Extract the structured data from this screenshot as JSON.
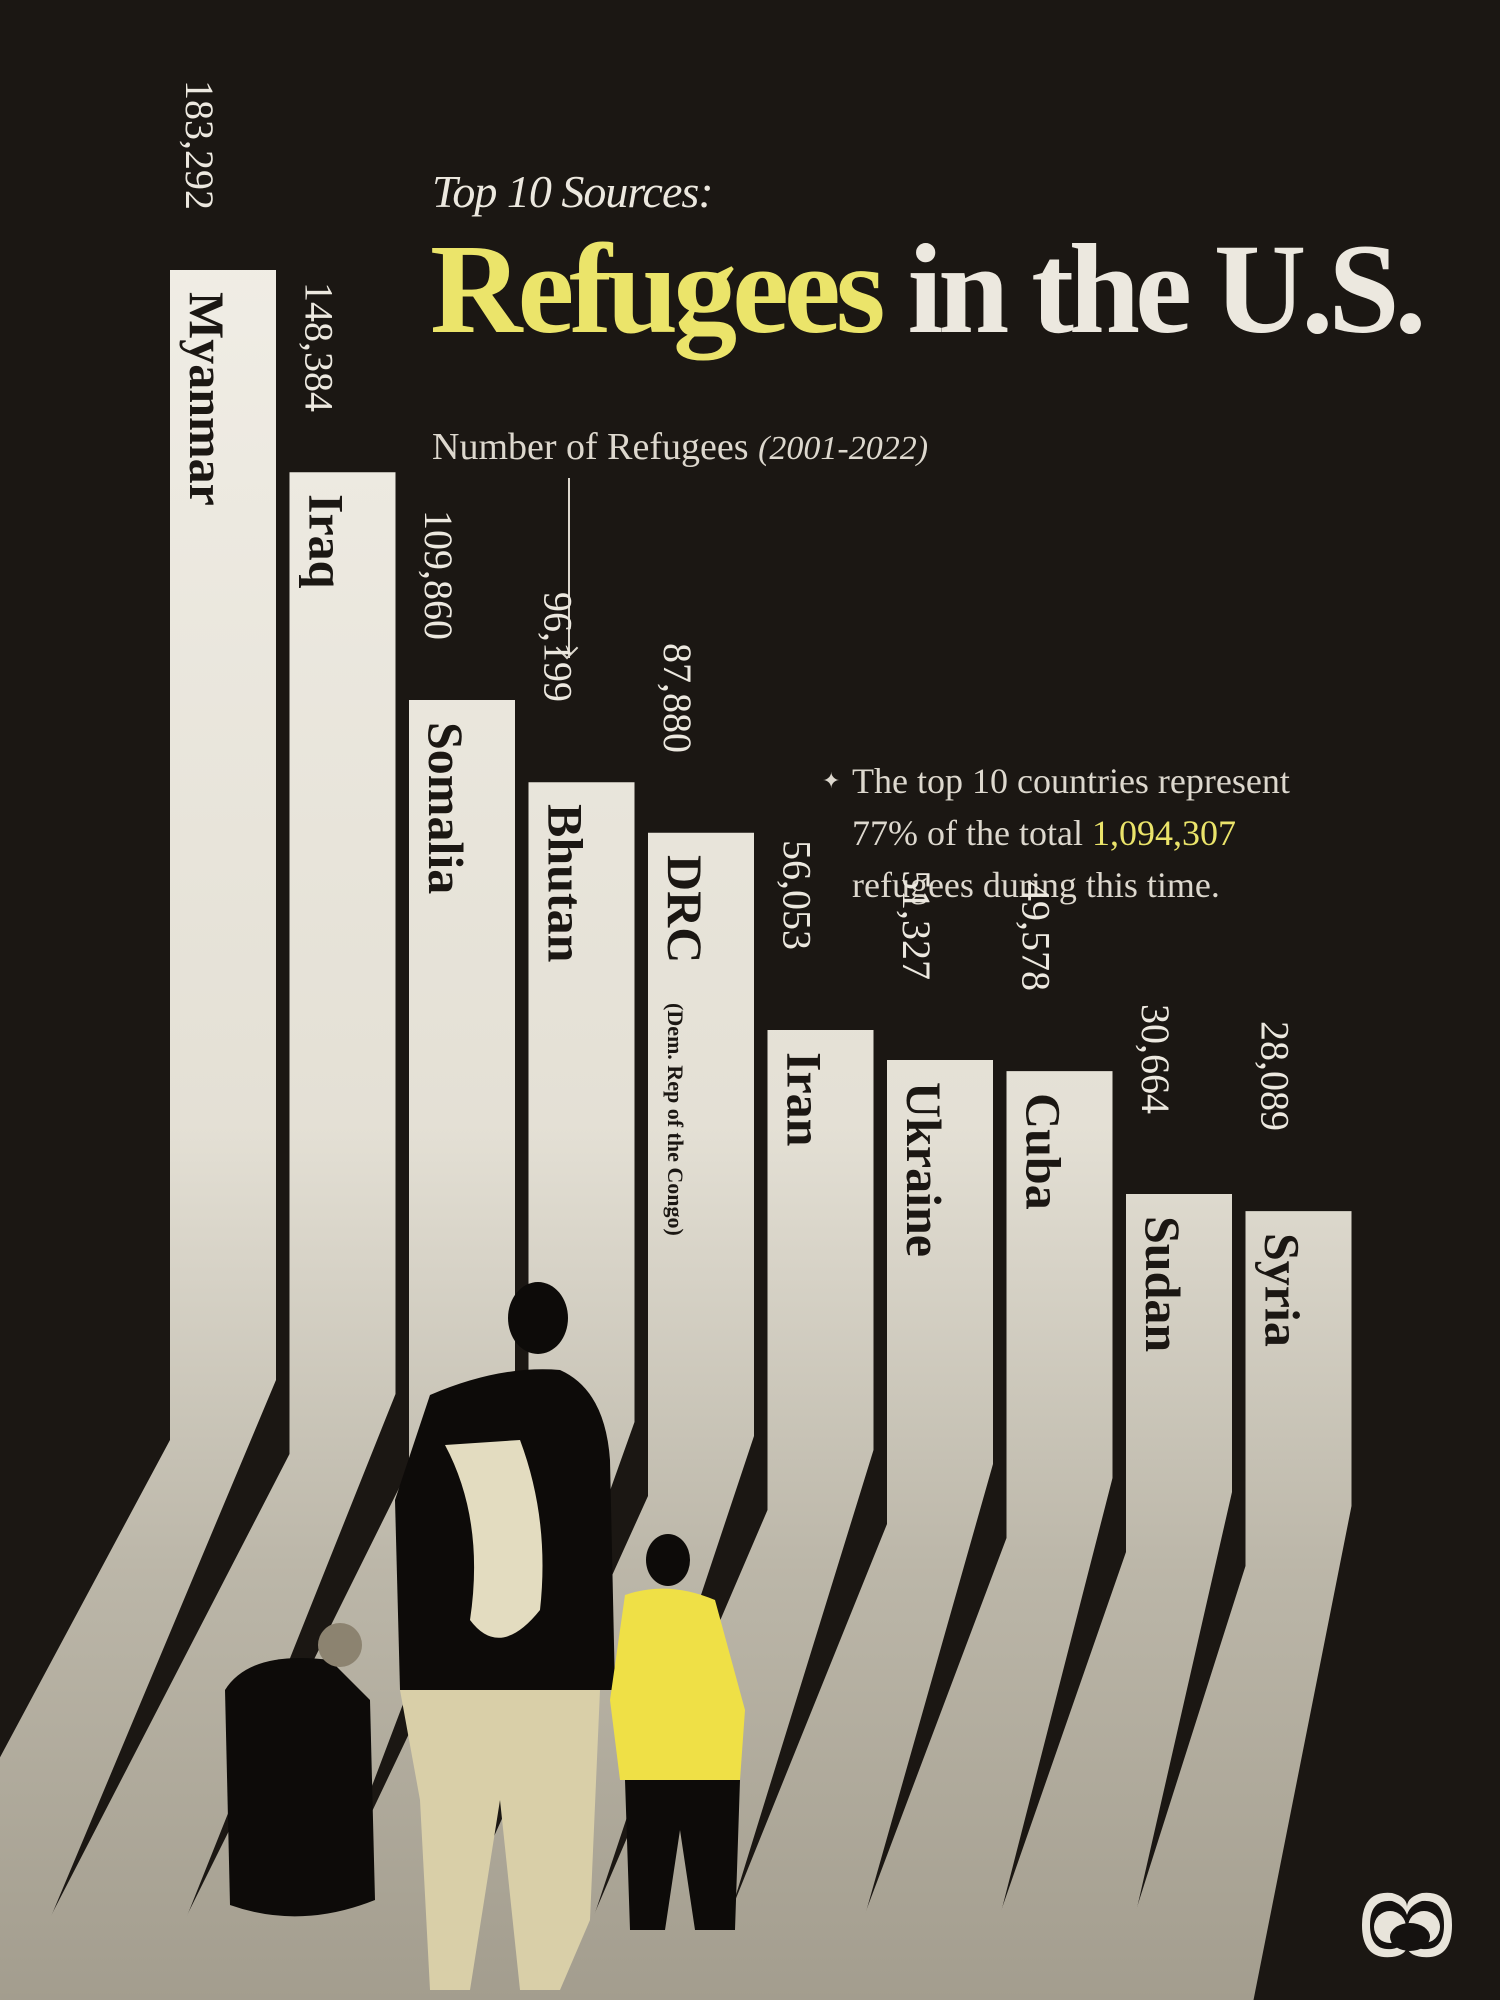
{
  "header": {
    "subtitle": "Top 10 Sources:",
    "title_highlight": "Refugees",
    "title_rest": " in the U.S.",
    "axis_label": "Number of Refugees ",
    "axis_period": "(2001-2022)"
  },
  "note": {
    "line1": "The top 10 countries represent",
    "line2_a": "77% of the total ",
    "line2_total": "1,094,307",
    "line3": "refugees during this time.",
    "bullet": "✦"
  },
  "colors": {
    "background": "#1b1713",
    "bar_top": "#ece9e0",
    "bar_bottom": "#a8a293",
    "highlight": "#ebe46a"
  },
  "bars": [
    {
      "name": "Myanmar",
      "value": "183,292"
    },
    {
      "name": "Iraq",
      "value": "148,384"
    },
    {
      "name": "Somalia",
      "value": "109,860"
    },
    {
      "name": "Bhutan",
      "value": "96,199"
    },
    {
      "name": "DRC",
      "value": "87,880",
      "note": "(Dem. Rep of the Congo)"
    },
    {
      "name": "Iran",
      "value": "56,053"
    },
    {
      "name": "Ukraine",
      "value": "51,327"
    },
    {
      "name": "Cuba",
      "value": "49,578"
    },
    {
      "name": "Sudan",
      "value": "30,664"
    },
    {
      "name": "Syria",
      "value": "28,089"
    }
  ],
  "chart_data": {
    "type": "bar",
    "title": "Top 10 Sources: Refugees in the U.S.",
    "subtitle": "Number of Refugees (2001-2022)",
    "categories": [
      "Myanmar",
      "Iraq",
      "Somalia",
      "Bhutan",
      "DRC",
      "Iran",
      "Ukraine",
      "Cuba",
      "Sudan",
      "Syria"
    ],
    "values": [
      183292,
      148384,
      109860,
      96199,
      87880,
      56053,
      51327,
      49578,
      30664,
      28089
    ],
    "xlabel": "",
    "ylabel": "Number of Refugees (2001-2022)",
    "annotations": [
      "DRC (Dem. Rep of the Congo)",
      "The top 10 countries represent 77% of the total 1,094,307 refugees during this time."
    ],
    "grid": false,
    "legend": null
  }
}
